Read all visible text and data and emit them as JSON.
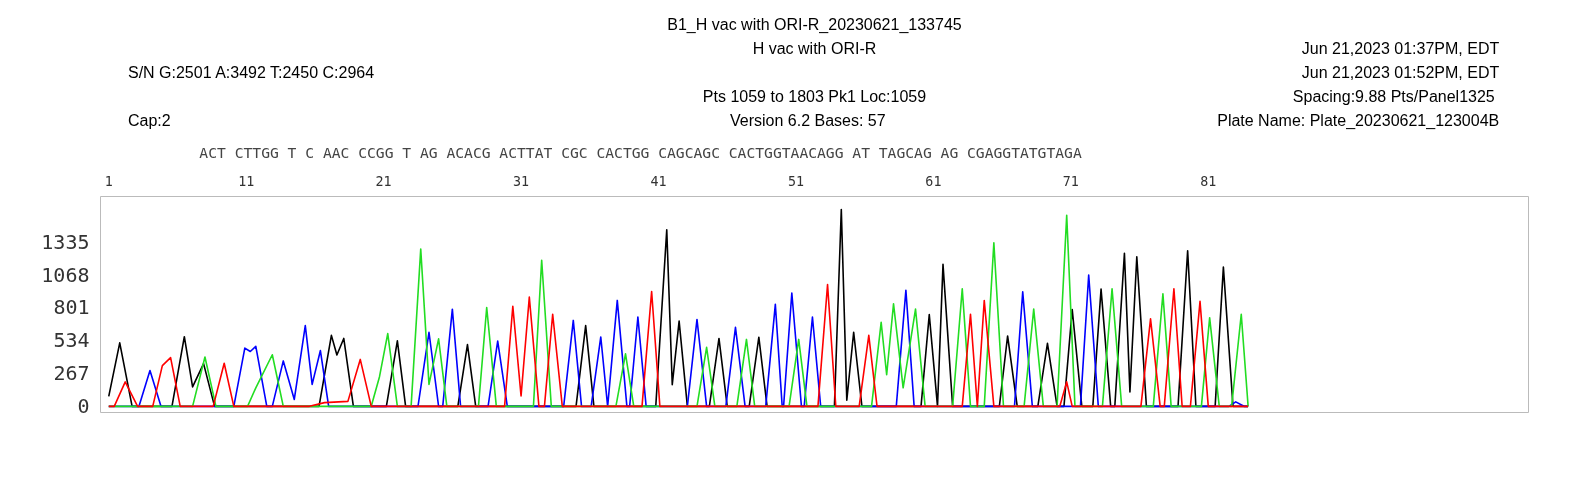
{
  "chart_data": {
    "type": "line",
    "title": "B1_H vac with ORI-R_20230621_133745",
    "subtitle": "H vac with ORI-R",
    "annotations": [
      "S/N G:2501 A:3492 T:2450 C:2964",
      "Cap:2",
      "Pts 1059 to 1803 Pk1 Loc:1059",
      "Version 6.2    Bases: 57",
      "Jun 21,2023 01:37PM, EDT",
      "Jun 21,2023 01:52PM, EDT",
      "Spacing:9.88  Pts/Panel1325",
      "Plate Name: Plate_20230621_123004B",
      "ACT  CTTGG T C AAC  CCGG T  AG ACACG ACTTAT CGC CACTGG CAGCAGC CACTGGTAACAGG AT TAGCAG AG CGAGGTATGTAGA"
    ],
    "xlim": [
      0.4,
      104.3
    ],
    "ylim": [
      -50,
      1700
    ],
    "xticks": [
      1,
      11,
      21,
      31,
      41,
      51,
      61,
      71,
      81
    ],
    "yticks": [
      0,
      267,
      534,
      801,
      1068,
      1335
    ],
    "grid": false,
    "series": [
      {
        "color": "#000000",
        "x": [
          1.0,
          1.8,
          2.7,
          5.6,
          6.5,
          7.1,
          7.9,
          8.7,
          16.3,
          17.2,
          17.6,
          18.1,
          18.8,
          21.2,
          22.0,
          22.6,
          26.4,
          27.1,
          27.7,
          35.0,
          35.7,
          36.3,
          40.8,
          41.6,
          42.0,
          42.5,
          43.1,
          44.7,
          45.4,
          46.0,
          47.6,
          48.3,
          48.9,
          53.8,
          54.3,
          54.7,
          55.2,
          55.8,
          60.1,
          60.7,
          61.3,
          61.7,
          62.4,
          65.8,
          66.4,
          67.1,
          68.6,
          69.3,
          70.0,
          70.5,
          71.1,
          71.8,
          72.6,
          73.2,
          73.9,
          74.2,
          74.9,
          75.3,
          75.8,
          76.5,
          78.8,
          79.5,
          80.1,
          81.5,
          82.1,
          82.8,
          83.9
        ],
        "values": [
          80,
          514,
          0,
          0,
          564,
          157,
          346,
          0,
          0,
          575,
          416,
          550,
          0,
          0,
          530,
          0,
          0,
          500,
          0,
          0,
          654,
          0,
          0,
          1430,
          176,
          690,
          0,
          0,
          550,
          0,
          0,
          560,
          0,
          0,
          1595,
          50,
          600,
          0,
          0,
          743,
          0,
          1150,
          0,
          0,
          570,
          0,
          0,
          510,
          0,
          0,
          785,
          0,
          0,
          950,
          0,
          0,
          1240,
          116,
          1212,
          0,
          0,
          1260,
          0,
          0,
          1128,
          0,
          0
        ]
      },
      {
        "color": "#0000ff",
        "x": [
          1.0,
          3.2,
          4.0,
          4.8,
          10.1,
          10.9,
          11.3,
          11.7,
          12.5,
          12.9,
          13.7,
          14.5,
          15.3,
          15.8,
          16.4,
          17.0,
          23.5,
          24.3,
          25.0,
          25.3,
          26.0,
          26.6,
          28.6,
          29.3,
          30.0,
          34.1,
          34.8,
          35.4,
          36.1,
          36.8,
          37.3,
          38.0,
          38.7,
          38.9,
          39.5,
          40.1,
          43.1,
          43.8,
          44.5,
          45.9,
          46.6,
          47.3,
          48.8,
          49.5,
          50.0,
          50.1,
          50.7,
          51.4,
          51.6,
          52.2,
          52.8,
          58.3,
          59.0,
          59.6,
          66.9,
          67.5,
          68.2,
          71.7,
          72.3,
          73.0,
          82.5,
          83.0,
          83.6,
          83.9
        ],
        "values": [
          0,
          0,
          290,
          0,
          0,
          472,
          444,
          486,
          0,
          0,
          368,
          56,
          654,
          178,
          452,
          0,
          0,
          600,
          0,
          0,
          787,
          0,
          0,
          528,
          0,
          0,
          696,
          0,
          0,
          562,
          0,
          858,
          0,
          0,
          724,
          0,
          0,
          704,
          0,
          0,
          640,
          0,
          0,
          826,
          0,
          0,
          918,
          0,
          0,
          724,
          0,
          0,
          941,
          0,
          0,
          927,
          0,
          0,
          1064,
          0,
          0,
          36,
          0,
          0
        ]
      },
      {
        "color": "#22dd22",
        "x": [
          1.0,
          7.1,
          8.0,
          8.8,
          11.1,
          11.7,
          12.9,
          13.7,
          20.1,
          20.7,
          21.3,
          22.0,
          23.0,
          23.7,
          24.3,
          25.0,
          25.6,
          27.9,
          28.5,
          29.2,
          31.9,
          32.5,
          33.2,
          37.9,
          38.6,
          39.2,
          43.8,
          44.5,
          45.1,
          46.7,
          47.4,
          48.0,
          50.5,
          51.2,
          51.8,
          56.5,
          57.2,
          57.6,
          58.1,
          58.8,
          59.7,
          60.4,
          62.4,
          63.1,
          63.7,
          64.7,
          65.4,
          66.1,
          67.6,
          68.3,
          69.0,
          70.0,
          70.7,
          71.3,
          73.3,
          74.0,
          74.7,
          77.0,
          77.7,
          78.3,
          80.5,
          81.1,
          81.8,
          82.7,
          83.4,
          83.9
        ],
        "values": [
          0,
          0,
          400,
          0,
          0,
          150,
          418,
          0,
          0,
          240,
          589,
          0,
          0,
          1274,
          178,
          547,
          0,
          0,
          801,
          0,
          0,
          1184,
          0,
          0,
          425,
          0,
          0,
          478,
          0,
          0,
          542,
          0,
          0,
          542,
          0,
          0,
          681,
          256,
          830,
          150,
          788,
          0,
          0,
          953,
          0,
          0,
          1324,
          0,
          0,
          788,
          0,
          0,
          1547,
          0,
          0,
          953,
          0,
          0,
          911,
          0,
          0,
          718,
          0,
          0,
          746,
          0
        ]
      },
      {
        "color": "#ff0000",
        "x": [
          1.0,
          1.4,
          2.2,
          3.1,
          4.2,
          4.9,
          5.5,
          6.2,
          8.6,
          9.4,
          10.1,
          15.6,
          16.7,
          18.4,
          19.3,
          20.1,
          29.8,
          30.4,
          31.0,
          31.6,
          32.3,
          32.7,
          33.3,
          34.0,
          39.8,
          40.5,
          41.1,
          52.6,
          53.3,
          53.9,
          55.6,
          56.3,
          56.9,
          63.1,
          63.7,
          64.2,
          64.7,
          65.4,
          70.2,
          70.7,
          71.1,
          76.1,
          76.8,
          77.5,
          77.8,
          78.5,
          79.1,
          79.7,
          80.4,
          81.0,
          83.9
        ],
        "values": [
          0,
          0,
          198,
          0,
          0,
          330,
          395,
          0,
          0,
          349,
          0,
          0,
          30,
          40,
          380,
          0,
          0,
          810,
          84,
          885,
          0,
          0,
          746,
          0,
          0,
          930,
          0,
          0,
          986,
          0,
          0,
          575,
          0,
          0,
          746,
          0,
          858,
          0,
          0,
          198,
          0,
          0,
          709,
          0,
          0,
          953,
          0,
          0,
          850,
          0,
          0
        ]
      }
    ]
  }
}
